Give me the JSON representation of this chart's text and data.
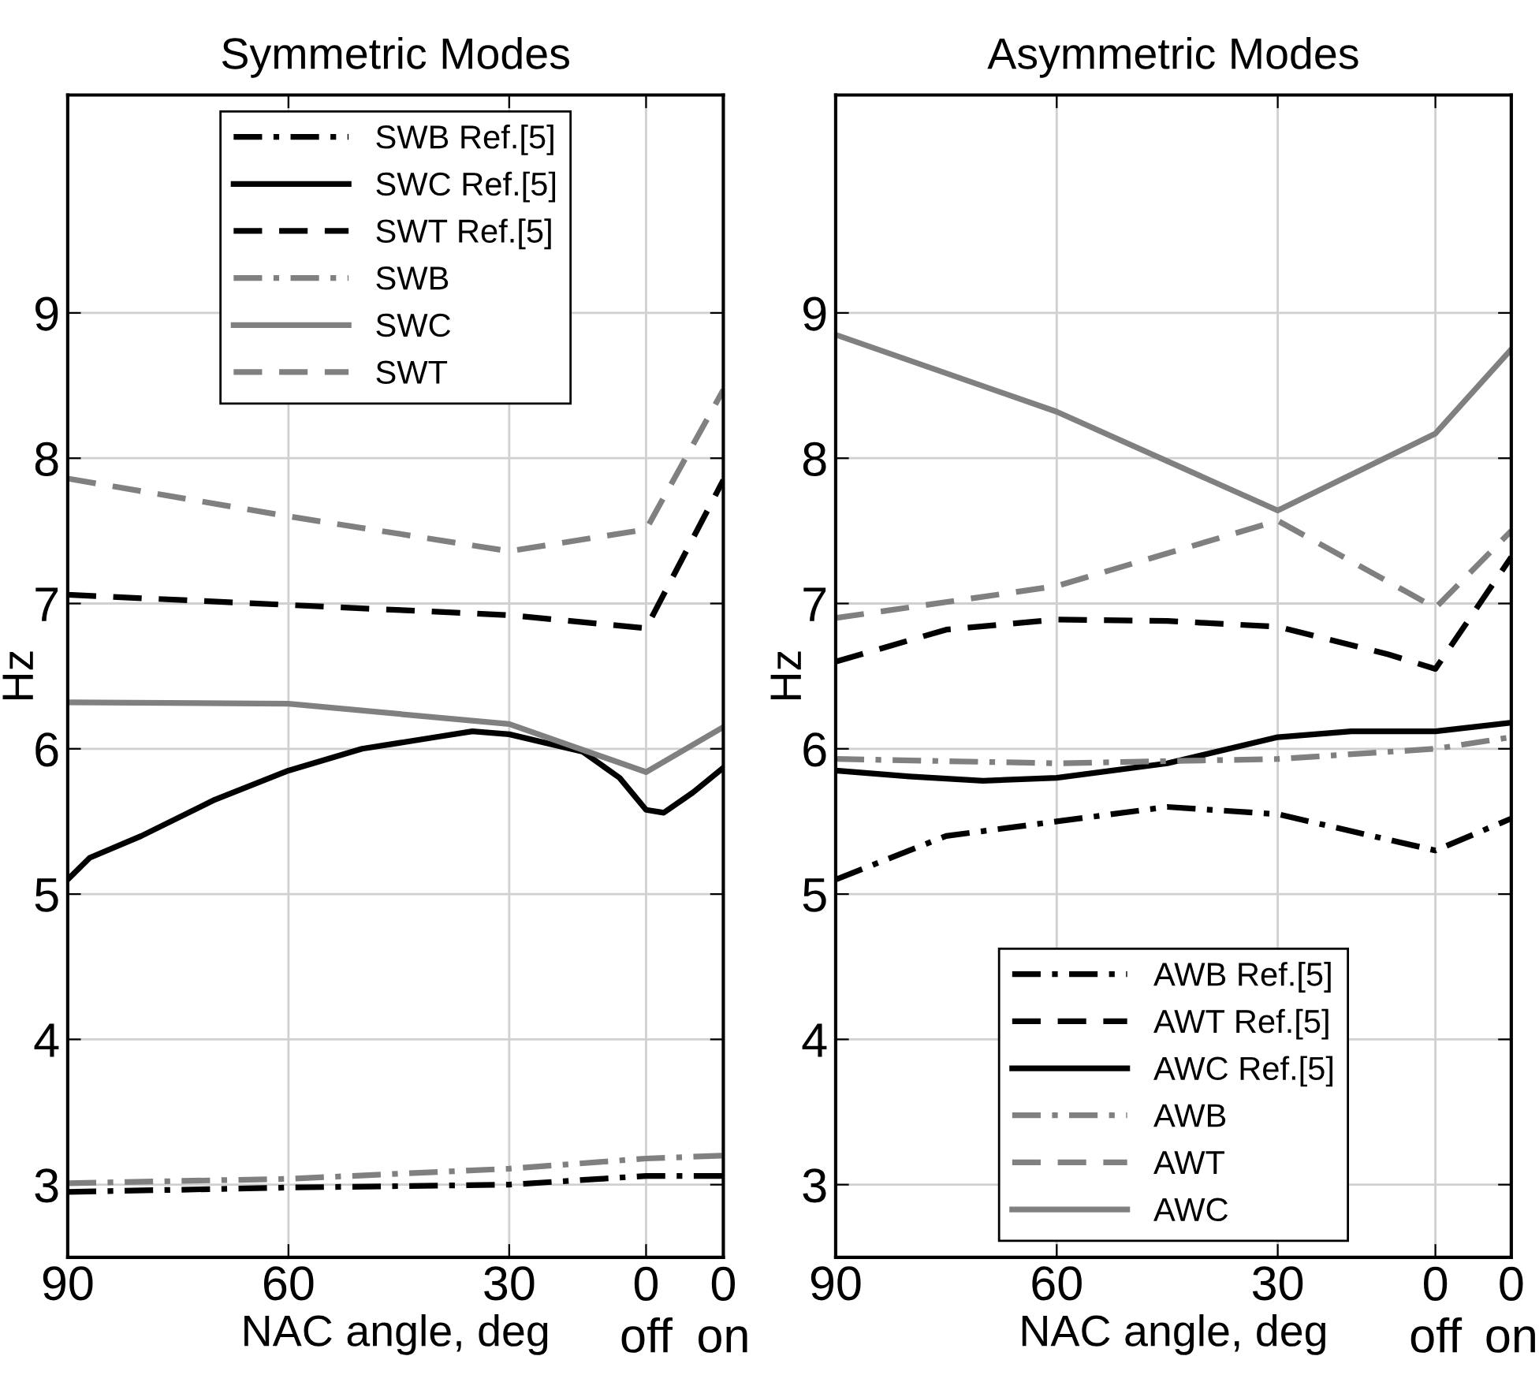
{
  "chart_data": [
    {
      "type": "line",
      "title": "Symmetric Modes",
      "xlabel": "NAC angle, deg",
      "ylabel": "Hz",
      "xlim": [
        90,
        0.9
      ],
      "xticks": [
        90,
        60,
        30,
        {
          "value": 11.4,
          "label": null
        },
        {
          "value": 0.9,
          "label": null
        }
      ],
      "annotations": [
        "0\noff",
        "0\non"
      ],
      "ylim": [
        2.5,
        10.5
      ],
      "yticks": [
        3,
        4,
        5,
        6,
        7,
        8,
        9
      ],
      "grid": true,
      "legend": "top",
      "marker": "none",
      "series": [
        {
          "name": "SWB Ref.[5]",
          "color": "#000000",
          "line_style": "dashdot",
          "x": [
            90,
            60,
            30,
            11.4,
            0.9
          ],
          "values": [
            2.95,
            2.98,
            3.0,
            3.06,
            3.06
          ]
        },
        {
          "name": "SWC Ref.[5]",
          "color": "#000000",
          "line_style": "solid",
          "x": [
            90,
            87,
            80,
            70,
            60,
            50,
            40,
            35,
            30,
            20,
            15,
            11.4,
            9,
            5,
            0.9
          ],
          "values": [
            5.1,
            5.25,
            5.4,
            5.65,
            5.85,
            6.0,
            6.08,
            6.12,
            6.1,
            5.98,
            5.8,
            5.58,
            5.56,
            5.7,
            5.87
          ]
        },
        {
          "name": "SWT Ref.[5]",
          "color": "#000000",
          "line_style": "dashed",
          "x": [
            90,
            60,
            30,
            11.4,
            0.9
          ],
          "values": [
            7.06,
            6.99,
            6.92,
            6.83,
            7.85
          ]
        },
        {
          "name": "SWB",
          "color": "#808080",
          "line_style": "dashdot",
          "x": [
            90,
            60,
            30,
            11.4,
            0.9
          ],
          "values": [
            3.01,
            3.04,
            3.11,
            3.18,
            3.2
          ]
        },
        {
          "name": "SWC",
          "color": "#808080",
          "line_style": "solid",
          "x": [
            90,
            60,
            30,
            11.4,
            0.9
          ],
          "values": [
            6.32,
            6.31,
            6.17,
            5.84,
            6.15
          ]
        },
        {
          "name": "SWT",
          "color": "#808080",
          "line_style": "dashed",
          "x": [
            90,
            60,
            30,
            11.4,
            0.9
          ],
          "values": [
            7.86,
            7.6,
            7.36,
            7.51,
            8.47
          ]
        }
      ]
    },
    {
      "type": "line",
      "title": "Asymmetric Modes",
      "xlabel": "NAC angle, deg",
      "ylabel": "Hz",
      "xlim": [
        90,
        -1.7
      ],
      "xticks": [
        90,
        60,
        30,
        {
          "value": 8.6,
          "label": null
        },
        {
          "value": -1.7,
          "label": null
        }
      ],
      "annotations": [
        "0\noff",
        "0\non"
      ],
      "ylim": [
        2.5,
        10.5
      ],
      "yticks": [
        3,
        4,
        5,
        6,
        7,
        8,
        9
      ],
      "grid": true,
      "legend": "bottom",
      "marker": "none",
      "series": [
        {
          "name": "AWB Ref.[5]",
          "color": "#000000",
          "line_style": "dashdot",
          "x": [
            90,
            75,
            60,
            45,
            30,
            8.6,
            -1.7
          ],
          "values": [
            5.1,
            5.4,
            5.5,
            5.6,
            5.55,
            5.3,
            5.52
          ]
        },
        {
          "name": "AWT Ref.[5]",
          "color": "#000000",
          "line_style": "dashed",
          "x": [
            90,
            75,
            60,
            45,
            30,
            15,
            8.6,
            -1.7
          ],
          "values": [
            6.6,
            6.82,
            6.89,
            6.88,
            6.84,
            6.65,
            6.55,
            7.32
          ]
        },
        {
          "name": "AWC Ref.[5]",
          "color": "#000000",
          "line_style": "solid",
          "x": [
            90,
            80,
            70,
            60,
            45,
            30,
            20,
            8.6,
            -1.7
          ],
          "values": [
            5.85,
            5.81,
            5.78,
            5.8,
            5.9,
            6.08,
            6.12,
            6.12,
            6.18
          ]
        },
        {
          "name": "AWB",
          "color": "#808080",
          "line_style": "dashdot",
          "x": [
            90,
            60,
            30,
            8.6,
            -1.7
          ],
          "values": [
            5.93,
            5.9,
            5.93,
            6.0,
            6.08
          ]
        },
        {
          "name": "AWT",
          "color": "#808080",
          "line_style": "dashed",
          "x": [
            90,
            60,
            30,
            8.6,
            -1.7
          ],
          "values": [
            6.9,
            7.12,
            7.57,
            6.97,
            7.5
          ]
        },
        {
          "name": "AWC",
          "color": "#808080",
          "line_style": "solid",
          "x": [
            90,
            60,
            30,
            8.6,
            -1.7
          ],
          "values": [
            8.85,
            8.32,
            7.64,
            8.17,
            8.75
          ]
        }
      ]
    }
  ]
}
